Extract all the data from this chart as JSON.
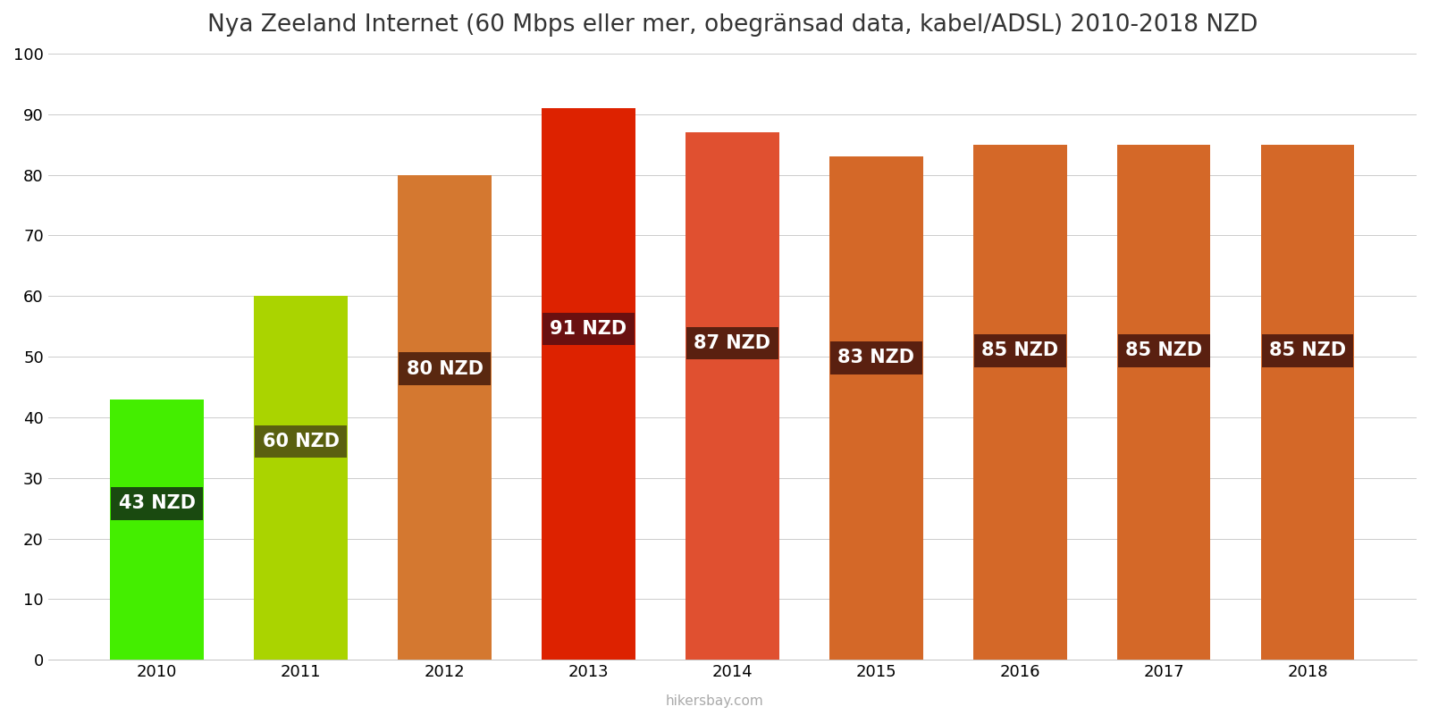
{
  "title": "Nya Zeeland Internet (60 Mbps eller mer, obegränsad data, kabel/ADSL) 2010-2018 NZD",
  "years": [
    2010,
    2011,
    2012,
    2013,
    2014,
    2015,
    2016,
    2017,
    2018
  ],
  "values": [
    43,
    60,
    80,
    91,
    87,
    83,
    85,
    85,
    85
  ],
  "bar_colors": [
    "#44ee00",
    "#aad400",
    "#d47830",
    "#dd2200",
    "#e05030",
    "#d46828",
    "#d46828",
    "#d46828",
    "#d46828"
  ],
  "label_texts": [
    "43 NZD",
    "60 NZD",
    "80 NZD",
    "91 NZD",
    "87 NZD",
    "83 NZD",
    "85 NZD",
    "85 NZD",
    "85 NZD"
  ],
  "label_bg_colors": [
    "#1a4a10",
    "#5a6010",
    "#5a2810",
    "#6a1010",
    "#5a2010",
    "#5a2010",
    "#5a2010",
    "#5a2010",
    "#5a2010"
  ],
  "label_text_color": "#ffffff",
  "ylim": [
    0,
    100
  ],
  "yticks": [
    0,
    10,
    20,
    30,
    40,
    50,
    60,
    70,
    80,
    90,
    100
  ],
  "watermark": "hikersbay.com",
  "background_color": "#ffffff",
  "title_fontsize": 19,
  "label_fontsize": 15,
  "bar_width": 0.65
}
